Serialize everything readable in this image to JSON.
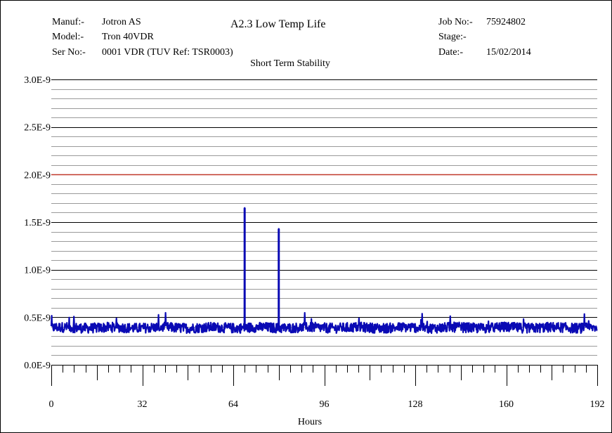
{
  "header": {
    "manuf_label": "Manuf:-",
    "manuf_value": "Jotron AS",
    "model_label": "Model:-",
    "model_value": "Tron 40VDR",
    "serno_label": "Ser No:-",
    "serno_value": "0001 VDR (TUV Ref: TSR0003)",
    "test_title": "A2.3 Low Temp Life",
    "job_label": "Job No:-",
    "job_value": "75924802",
    "stage_label": "Stage:-",
    "stage_value": "",
    "date_label": "Date:-",
    "date_value": "15/02/2014"
  },
  "colors": {
    "series": "#0a0ab4",
    "limit": "#c0392b",
    "grid_major": "#000000",
    "grid_minor": "#9a9a9a"
  },
  "chart_data": {
    "type": "line",
    "title": "Short Term Stability",
    "xlabel": "Hours",
    "ylabel": "",
    "xlim": [
      0,
      192
    ],
    "ylim": [
      0.0,
      3e-09
    ],
    "x_ticks": [
      0,
      32,
      64,
      96,
      128,
      160,
      192
    ],
    "x_tick_labels": [
      "0",
      "32",
      "64",
      "96",
      "128",
      "160",
      "192"
    ],
    "y_ticks": [
      0.0,
      5e-10,
      1e-09,
      1.5e-09,
      2e-09,
      2.5e-09,
      3e-09
    ],
    "y_tick_labels": [
      "0.0E-9",
      "0.5E-9",
      "1.0E-9",
      "1.5E-9",
      "2.0E-9",
      "2.5E-9",
      "3.0E-9"
    ],
    "minor_gridlines_per_major": 5,
    "grid": true,
    "limit_line": {
      "y": 2e-09
    },
    "series": [
      {
        "baseline_mean": 3.9e-10,
        "baseline_band": [
          3.2e-10,
          5.5e-10
        ],
        "spikes": [
          {
            "x": 68,
            "y": 1.65e-09
          },
          {
            "x": 80,
            "y": 1.43e-09
          }
        ],
        "x_range": [
          0,
          192
        ]
      }
    ]
  }
}
